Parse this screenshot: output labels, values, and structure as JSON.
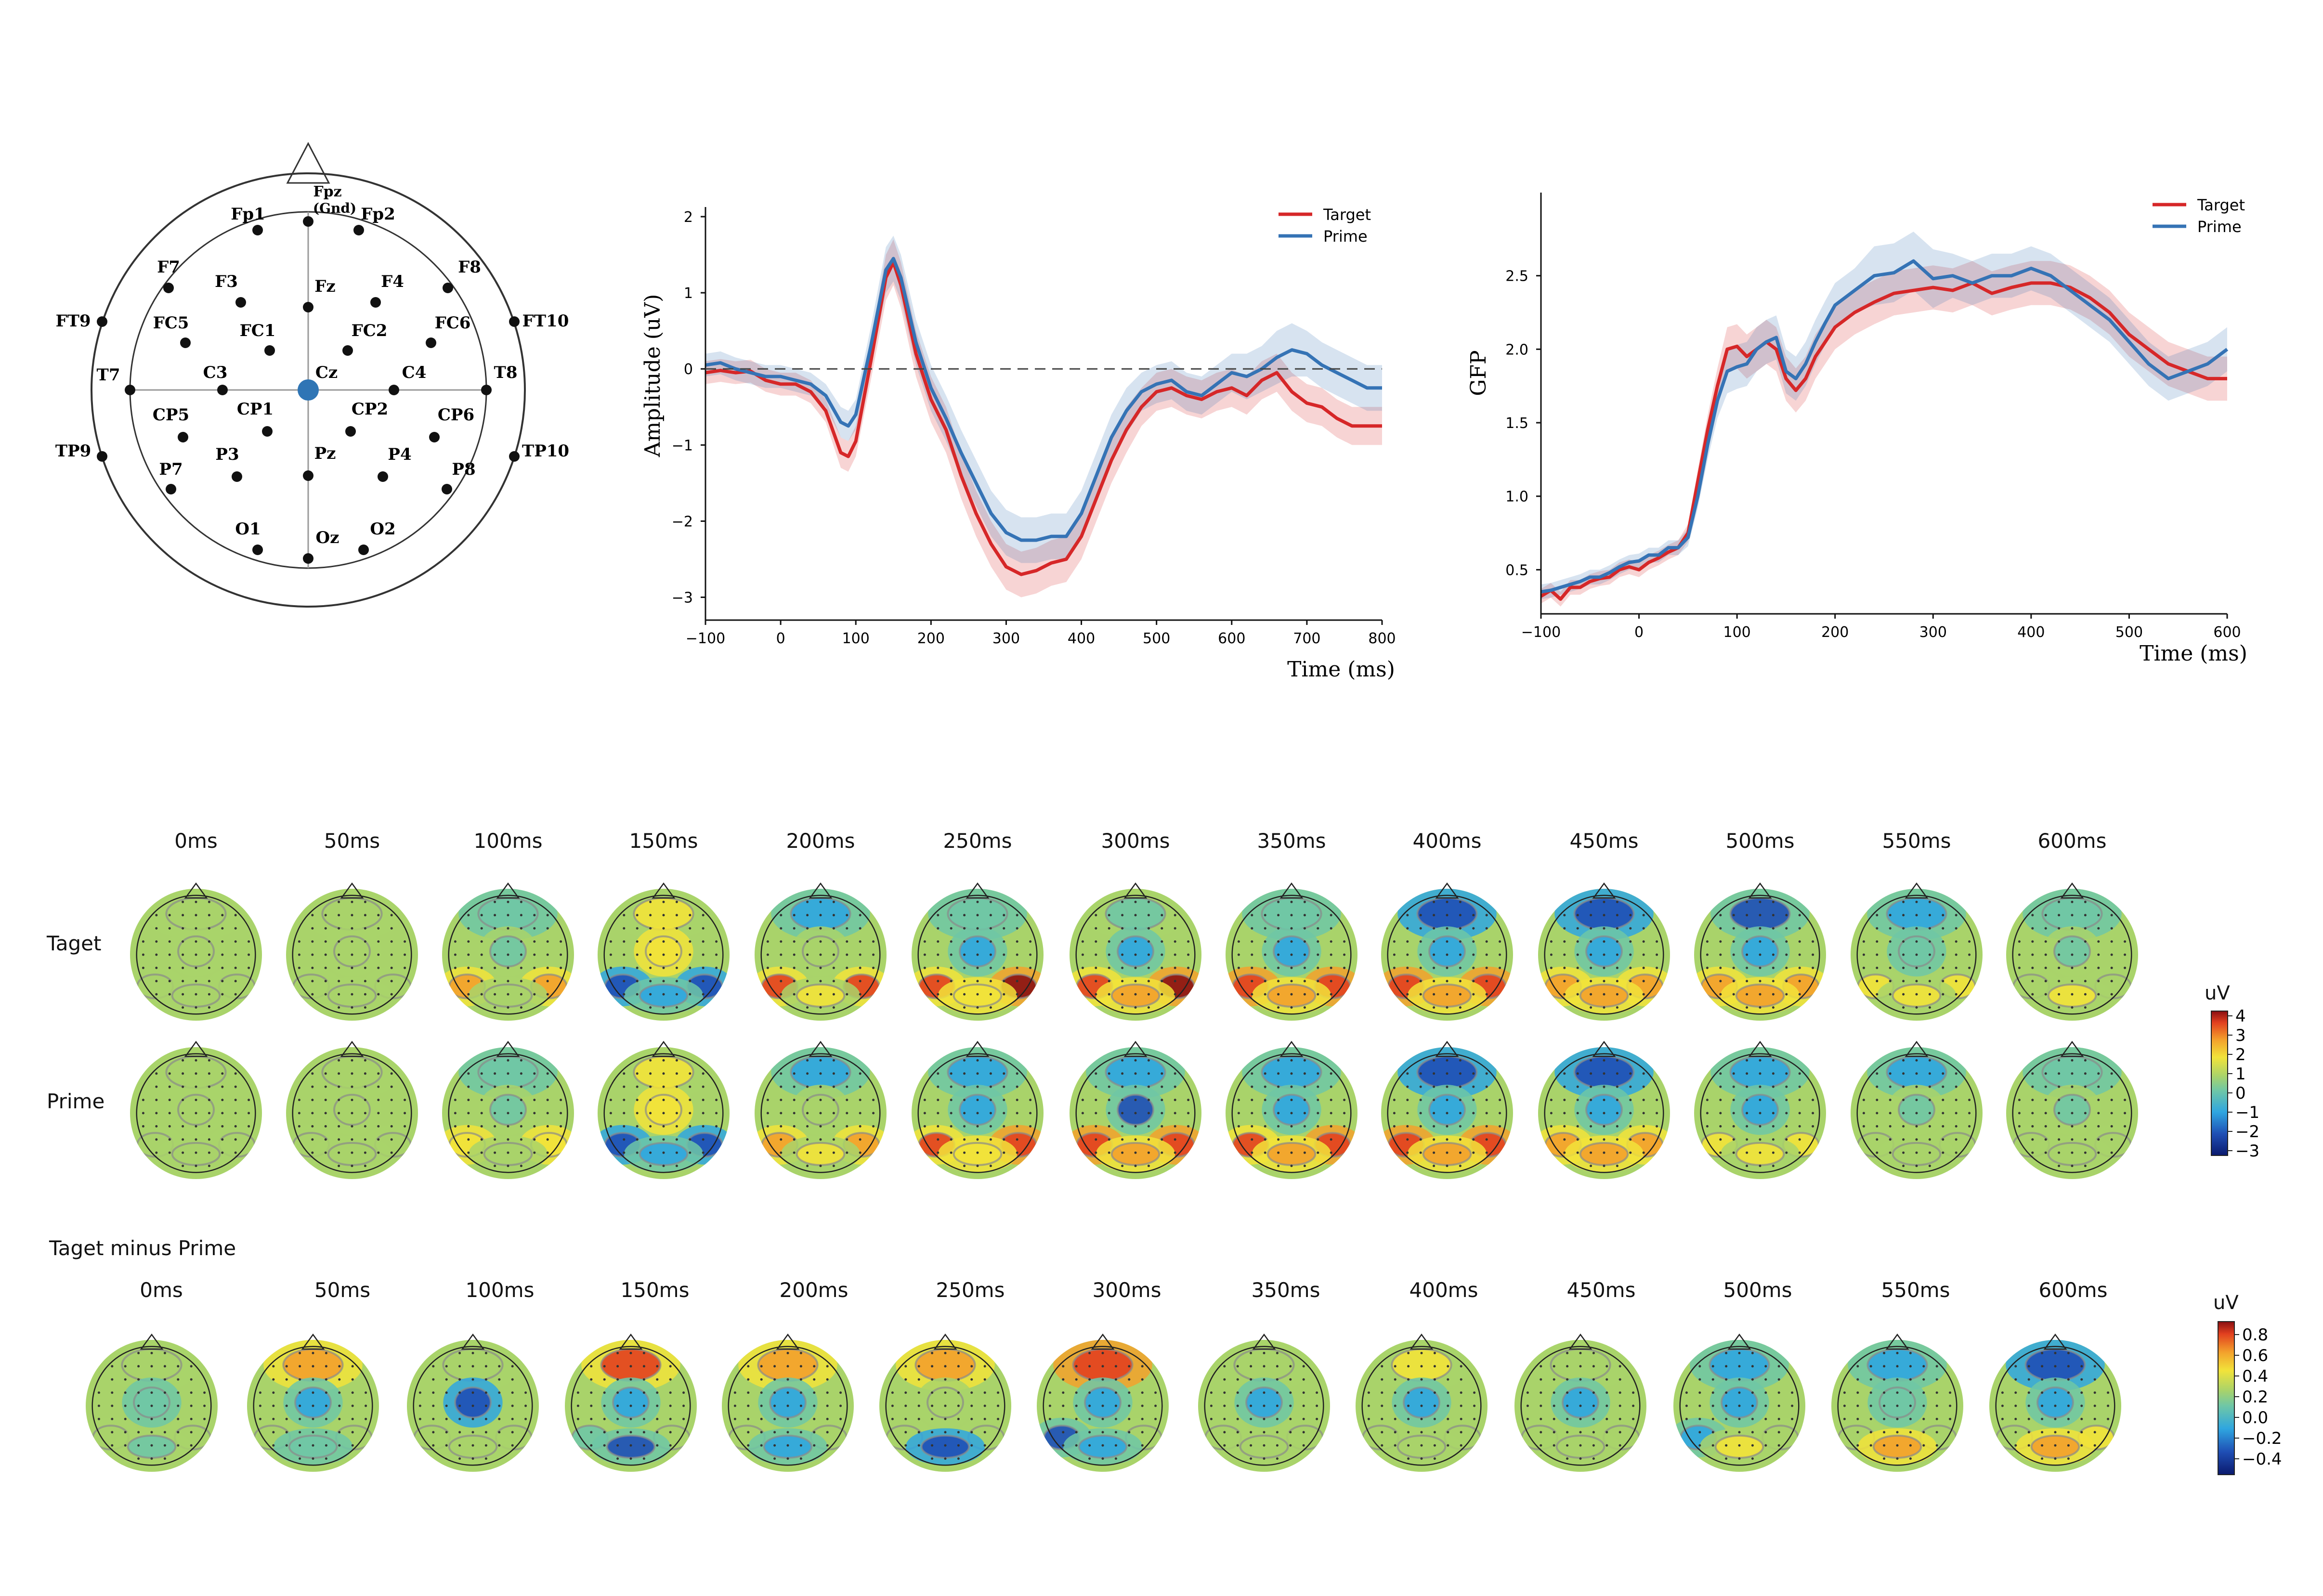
{
  "electrode_map": {
    "electrodes": [
      "Fpz (Gnd)",
      "Fp1",
      "Fp2",
      "F7",
      "F3",
      "Fz",
      "F4",
      "F8",
      "FT9",
      "FT10",
      "FC5",
      "FC1",
      "FC2",
      "FC6",
      "T7",
      "C3",
      "Cz",
      "C4",
      "T8",
      "TP9",
      "CP5",
      "CP1",
      "CP2",
      "CP6",
      "TP10",
      "P7",
      "P3",
      "Pz",
      "P4",
      "P8",
      "O1",
      "Oz",
      "O2"
    ],
    "reference_highlight": "Cz",
    "highlight_color": "#2f75b5"
  },
  "chart_data": [
    {
      "type": "line",
      "ylabel": "Amplitude (uV)",
      "xlabel": "Time (ms)",
      "xlim": [
        -100,
        800
      ],
      "ylim": [
        -3.3,
        2
      ],
      "xticks": [
        "−100",
        "0",
        "100",
        "200",
        "300",
        "400",
        "500",
        "600",
        "700",
        "800"
      ],
      "yticks": [
        "2",
        "1",
        "0",
        "−1",
        "−2",
        "−3"
      ],
      "zero_line": "dashed",
      "legend_position": "top-right",
      "x": [
        -100,
        -80,
        -60,
        -40,
        -20,
        0,
        20,
        40,
        60,
        80,
        90,
        100,
        120,
        140,
        150,
        160,
        180,
        200,
        220,
        240,
        260,
        280,
        300,
        320,
        340,
        360,
        380,
        400,
        420,
        440,
        460,
        480,
        500,
        520,
        540,
        560,
        580,
        600,
        620,
        640,
        660,
        680,
        700,
        720,
        740,
        760,
        780,
        800
      ],
      "series": [
        {
          "name": "Target",
          "color": "#d62728",
          "values": [
            -0.05,
            -0.02,
            -0.05,
            -0.03,
            -0.15,
            -0.2,
            -0.2,
            -0.3,
            -0.55,
            -1.1,
            -1.15,
            -0.95,
            0.1,
            1.2,
            1.4,
            1.1,
            0.2,
            -0.4,
            -0.8,
            -1.4,
            -1.9,
            -2.3,
            -2.6,
            -2.7,
            -2.65,
            -2.55,
            -2.5,
            -2.2,
            -1.7,
            -1.2,
            -0.8,
            -0.5,
            -0.3,
            -0.25,
            -0.35,
            -0.4,
            -0.3,
            -0.25,
            -0.35,
            -0.15,
            -0.05,
            -0.3,
            -0.45,
            -0.5,
            -0.65,
            -0.75,
            -0.75,
            -0.75
          ],
          "band": [
            0.15,
            0.15,
            0.15,
            0.15,
            0.15,
            0.15,
            0.15,
            0.15,
            0.15,
            0.2,
            0.2,
            0.2,
            0.25,
            0.3,
            0.3,
            0.3,
            0.3,
            0.3,
            0.3,
            0.3,
            0.3,
            0.3,
            0.3,
            0.3,
            0.3,
            0.3,
            0.3,
            0.3,
            0.3,
            0.3,
            0.3,
            0.25,
            0.25,
            0.25,
            0.25,
            0.25,
            0.25,
            0.25,
            0.25,
            0.25,
            0.25,
            0.25,
            0.25,
            0.25,
            0.25,
            0.25,
            0.25,
            0.25
          ]
        },
        {
          "name": "Prime",
          "color": "#3573b5",
          "values": [
            0.05,
            0.08,
            0.0,
            -0.05,
            -0.1,
            -0.1,
            -0.15,
            -0.2,
            -0.35,
            -0.7,
            -0.75,
            -0.6,
            0.3,
            1.3,
            1.45,
            1.2,
            0.35,
            -0.25,
            -0.65,
            -1.1,
            -1.5,
            -1.9,
            -2.15,
            -2.25,
            -2.25,
            -2.2,
            -2.2,
            -1.9,
            -1.4,
            -0.9,
            -0.55,
            -0.3,
            -0.2,
            -0.15,
            -0.3,
            -0.35,
            -0.2,
            -0.05,
            -0.1,
            0.0,
            0.15,
            0.25,
            0.2,
            0.05,
            -0.05,
            -0.15,
            -0.25,
            -0.25
          ],
          "band": [
            0.15,
            0.15,
            0.15,
            0.15,
            0.15,
            0.15,
            0.15,
            0.15,
            0.15,
            0.2,
            0.2,
            0.2,
            0.25,
            0.3,
            0.3,
            0.3,
            0.3,
            0.3,
            0.3,
            0.3,
            0.3,
            0.3,
            0.3,
            0.3,
            0.3,
            0.3,
            0.3,
            0.3,
            0.3,
            0.3,
            0.3,
            0.25,
            0.25,
            0.25,
            0.25,
            0.25,
            0.25,
            0.25,
            0.3,
            0.3,
            0.35,
            0.35,
            0.3,
            0.3,
            0.3,
            0.3,
            0.3,
            0.3
          ]
        }
      ]
    },
    {
      "type": "line",
      "ylabel": "GFP",
      "xlabel": "Time (ms)",
      "xlim": [
        -100,
        600
      ],
      "ylim": [
        0.2,
        3.0
      ],
      "xticks": [
        "−100",
        "0",
        "100",
        "200",
        "300",
        "400",
        "500",
        "600"
      ],
      "yticks": [
        "2.5",
        "2.0",
        "1.5",
        "1.0",
        "0.5"
      ],
      "legend_position": "top-right",
      "x": [
        -100,
        -90,
        -80,
        -70,
        -60,
        -50,
        -40,
        -30,
        -20,
        -10,
        0,
        10,
        20,
        30,
        40,
        50,
        60,
        70,
        80,
        90,
        100,
        110,
        120,
        130,
        140,
        150,
        160,
        170,
        180,
        190,
        200,
        220,
        240,
        260,
        280,
        300,
        320,
        340,
        360,
        380,
        400,
        420,
        440,
        460,
        480,
        500,
        520,
        540,
        560,
        580,
        600
      ],
      "series": [
        {
          "name": "Target",
          "color": "#d62728",
          "values": [
            0.32,
            0.36,
            0.3,
            0.38,
            0.38,
            0.42,
            0.44,
            0.45,
            0.5,
            0.52,
            0.5,
            0.55,
            0.58,
            0.62,
            0.65,
            0.75,
            1.1,
            1.45,
            1.75,
            2.0,
            2.02,
            1.95,
            2.0,
            2.05,
            2.0,
            1.8,
            1.72,
            1.8,
            1.95,
            2.05,
            2.15,
            2.25,
            2.32,
            2.38,
            2.4,
            2.42,
            2.4,
            2.45,
            2.38,
            2.42,
            2.45,
            2.45,
            2.42,
            2.35,
            2.25,
            2.1,
            2.0,
            1.9,
            1.85,
            1.8,
            1.8
          ],
          "band": [
            0.05,
            0.05,
            0.05,
            0.05,
            0.05,
            0.05,
            0.05,
            0.05,
            0.05,
            0.05,
            0.05,
            0.05,
            0.05,
            0.05,
            0.05,
            0.06,
            0.08,
            0.1,
            0.12,
            0.15,
            0.15,
            0.15,
            0.15,
            0.15,
            0.15,
            0.15,
            0.15,
            0.15,
            0.15,
            0.15,
            0.15,
            0.15,
            0.15,
            0.15,
            0.15,
            0.15,
            0.15,
            0.15,
            0.15,
            0.15,
            0.15,
            0.15,
            0.15,
            0.15,
            0.15,
            0.15,
            0.15,
            0.15,
            0.15,
            0.15,
            0.15
          ]
        },
        {
          "name": "Prime",
          "color": "#3573b5",
          "values": [
            0.35,
            0.36,
            0.38,
            0.4,
            0.42,
            0.45,
            0.45,
            0.48,
            0.52,
            0.55,
            0.56,
            0.6,
            0.6,
            0.65,
            0.65,
            0.72,
            1.0,
            1.35,
            1.65,
            1.85,
            1.88,
            1.9,
            2.0,
            2.05,
            2.08,
            1.85,
            1.8,
            1.9,
            2.05,
            2.18,
            2.3,
            2.4,
            2.5,
            2.52,
            2.6,
            2.48,
            2.5,
            2.45,
            2.5,
            2.5,
            2.55,
            2.5,
            2.4,
            2.3,
            2.2,
            2.05,
            1.9,
            1.8,
            1.85,
            1.9,
            2.0
          ],
          "band": [
            0.05,
            0.05,
            0.05,
            0.05,
            0.05,
            0.05,
            0.05,
            0.05,
            0.05,
            0.05,
            0.05,
            0.05,
            0.05,
            0.05,
            0.05,
            0.06,
            0.08,
            0.1,
            0.12,
            0.15,
            0.15,
            0.15,
            0.15,
            0.15,
            0.15,
            0.15,
            0.15,
            0.15,
            0.15,
            0.15,
            0.15,
            0.15,
            0.2,
            0.2,
            0.2,
            0.2,
            0.15,
            0.15,
            0.15,
            0.15,
            0.15,
            0.15,
            0.15,
            0.15,
            0.15,
            0.15,
            0.15,
            0.15,
            0.15,
            0.15,
            0.15
          ]
        }
      ]
    },
    {
      "type": "heatmap",
      "description_rows": [
        "Taget",
        "Prime",
        "Taget minus Prime"
      ],
      "time_labels": [
        "0ms",
        "50ms",
        "100ms",
        "150ms",
        "200ms",
        "250ms",
        "300ms",
        "350ms",
        "400ms",
        "450ms",
        "500ms",
        "550ms",
        "600ms"
      ],
      "colorbar_main": {
        "unit": "uV",
        "ticks": [
          "4",
          "3",
          "2",
          "1",
          "0",
          "−1",
          "−2",
          "−3"
        ],
        "range": [
          -3.5,
          4
        ]
      },
      "colorbar_diff": {
        "unit": "uV",
        "ticks": [
          "0.8",
          "0.6",
          "0.4",
          "0.2",
          "0.0",
          "−0.2",
          "−0.4"
        ],
        "range": [
          -0.5,
          0.9
        ]
      }
    }
  ],
  "topomaps": {
    "section_title": "Taget minus Prime",
    "row_target": "Taget",
    "row_prime": "Prime",
    "times_top": [
      "0ms",
      "50ms",
      "100ms",
      "150ms",
      "200ms",
      "250ms",
      "300ms",
      "350ms",
      "400ms",
      "450ms",
      "500ms",
      "550ms",
      "600ms"
    ],
    "times_bottom": [
      "0ms",
      "50ms",
      "100ms",
      "150ms",
      "200ms",
      "250ms",
      "300ms",
      "350ms",
      "400ms",
      "450ms",
      "500ms",
      "550ms",
      "600ms"
    ],
    "colorbar_unit": "uV",
    "colorbar_ticks": [
      "4",
      "3",
      "2",
      "1",
      "0",
      "−1",
      "−2",
      "−3"
    ],
    "diff_colorbar_unit": "uV",
    "diff_colorbar_ticks": [
      "0.8",
      "0.6",
      "0.4",
      "0.2",
      "0.0",
      "−0.2",
      "−0.4"
    ]
  }
}
